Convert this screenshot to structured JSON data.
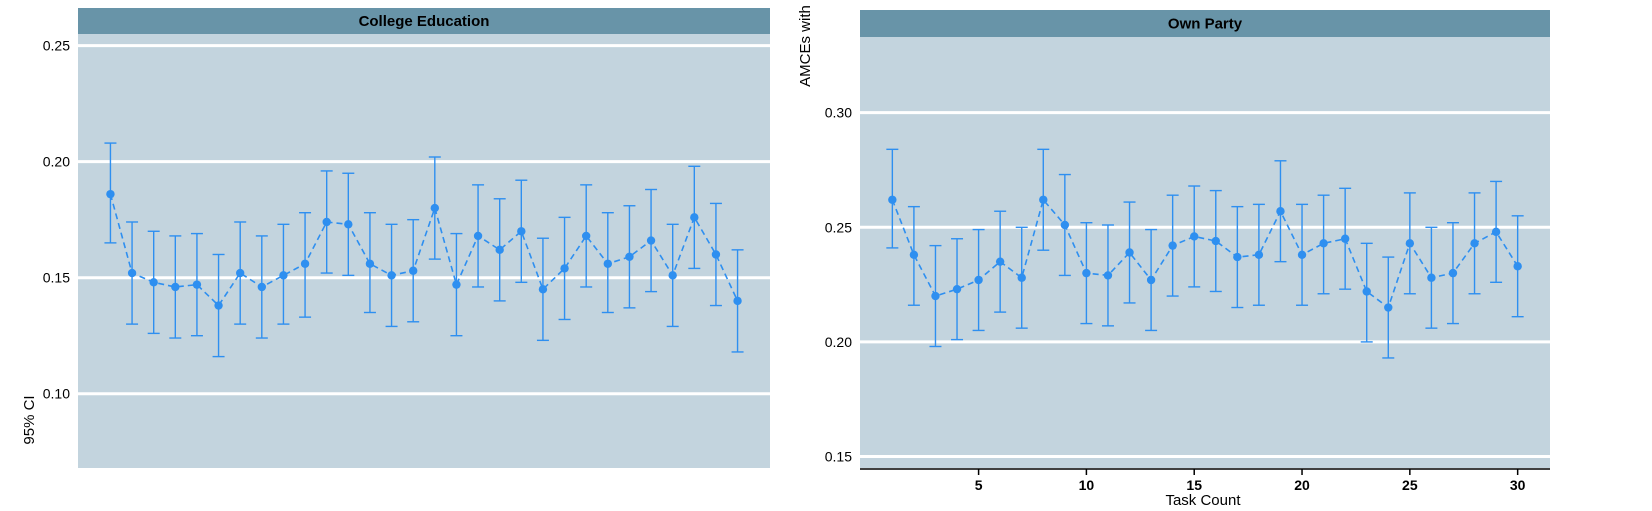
{
  "colors": {
    "panel_bg": "#c3d4de",
    "strip_bg": "#6894a8",
    "gridline": "#ffffff",
    "series": "#2e8ff0"
  },
  "y_axis_label_parts": [
    "95% CI",
    "AMCEs with"
  ],
  "x_axis_label": "Task Count",
  "chart_data": [
    {
      "type": "scatter",
      "title": "College Education",
      "x": [
        1,
        2,
        3,
        4,
        5,
        6,
        7,
        8,
        9,
        10,
        11,
        12,
        13,
        14,
        15,
        16,
        17,
        18,
        19,
        20,
        21,
        22,
        23,
        24,
        25,
        26,
        27,
        28,
        29,
        30
      ],
      "y": [
        0.186,
        0.152,
        0.148,
        0.146,
        0.147,
        0.138,
        0.152,
        0.146,
        0.151,
        0.156,
        0.174,
        0.173,
        0.156,
        0.151,
        0.153,
        0.18,
        0.147,
        0.168,
        0.162,
        0.17,
        0.145,
        0.154,
        0.168,
        0.156,
        0.159,
        0.166,
        0.151,
        0.176,
        0.16,
        0.14
      ],
      "lower": [
        0.165,
        0.13,
        0.126,
        0.124,
        0.125,
        0.116,
        0.13,
        0.124,
        0.13,
        0.133,
        0.152,
        0.151,
        0.135,
        0.129,
        0.131,
        0.158,
        0.125,
        0.146,
        0.14,
        0.148,
        0.123,
        0.132,
        0.146,
        0.135,
        0.137,
        0.144,
        0.129,
        0.154,
        0.138,
        0.118
      ],
      "upper": [
        0.208,
        0.174,
        0.17,
        0.168,
        0.169,
        0.16,
        0.174,
        0.168,
        0.173,
        0.178,
        0.196,
        0.195,
        0.178,
        0.173,
        0.175,
        0.202,
        0.169,
        0.19,
        0.184,
        0.192,
        0.167,
        0.176,
        0.19,
        0.178,
        0.181,
        0.188,
        0.173,
        0.198,
        0.182,
        0.162
      ],
      "yticks": [
        "0.10",
        "0.15",
        "0.20",
        "0.25"
      ],
      "ylim": [
        0.068,
        0.255
      ],
      "xlim": [
        -0.5,
        31.5
      ],
      "grid": true,
      "line_style": "dashed"
    },
    {
      "type": "scatter",
      "title": "Own Party",
      "x": [
        1,
        2,
        3,
        4,
        5,
        6,
        7,
        8,
        9,
        10,
        11,
        12,
        13,
        14,
        15,
        16,
        17,
        18,
        19,
        20,
        21,
        22,
        23,
        24,
        25,
        26,
        27,
        28,
        29,
        30
      ],
      "y": [
        0.262,
        0.238,
        0.22,
        0.223,
        0.227,
        0.235,
        0.228,
        0.262,
        0.251,
        0.23,
        0.229,
        0.239,
        0.227,
        0.242,
        0.246,
        0.244,
        0.237,
        0.238,
        0.257,
        0.238,
        0.243,
        0.245,
        0.222,
        0.215,
        0.243,
        0.228,
        0.23,
        0.243,
        0.248,
        0.233
      ],
      "lower": [
        0.241,
        0.216,
        0.198,
        0.201,
        0.205,
        0.213,
        0.206,
        0.24,
        0.229,
        0.208,
        0.207,
        0.217,
        0.205,
        0.22,
        0.224,
        0.222,
        0.215,
        0.216,
        0.235,
        0.216,
        0.221,
        0.223,
        0.2,
        0.193,
        0.221,
        0.206,
        0.208,
        0.221,
        0.226,
        0.211
      ],
      "upper": [
        0.284,
        0.259,
        0.242,
        0.245,
        0.249,
        0.257,
        0.25,
        0.284,
        0.273,
        0.252,
        0.251,
        0.261,
        0.249,
        0.264,
        0.268,
        0.266,
        0.259,
        0.26,
        0.279,
        0.26,
        0.264,
        0.267,
        0.243,
        0.237,
        0.265,
        0.25,
        0.252,
        0.265,
        0.27,
        0.255
      ],
      "yticks": [
        "0.15",
        "0.20",
        "0.25",
        "0.30"
      ],
      "xticks": [
        "5",
        "10",
        "15",
        "20",
        "25",
        "30"
      ],
      "ylim": [
        0.145,
        0.333
      ],
      "xlim": [
        -0.5,
        31.5
      ],
      "grid": true,
      "line_style": "dashed"
    }
  ]
}
